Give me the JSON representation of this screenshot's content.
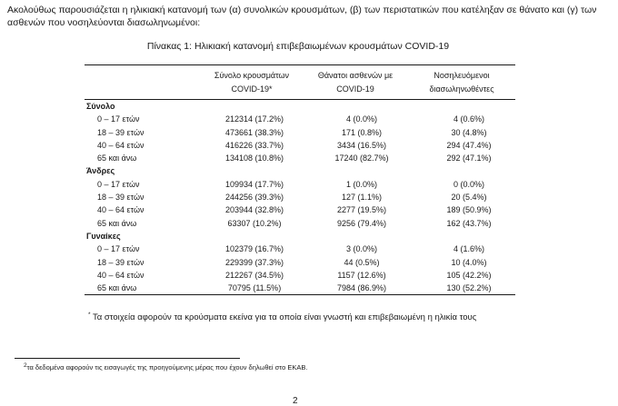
{
  "intro": "Ακολούθως παρουσιάζεται η ηλικιακή κατανομή των (α) συνολικών κρουσμάτων, (β) των περιστατικών που κατέληξαν σε θάνατο και (γ) των ασθενών που νοσηλεύονται διασωληνωμένοι:",
  "table": {
    "title": "Πίνακας 1: Ηλικιακή κατανομή επιβεβαιωμένων κρουσμάτων COVID-19",
    "headers": [
      "",
      "Σύνολο κρουσμάτων COVID-19*",
      "Θάνατοι ασθενών με COVID-19",
      "Νοσηλευόμενοι διασωληνωθέντες"
    ],
    "groups": [
      {
        "name": "Σύνολο",
        "rows": [
          {
            "age": "0 – 17 ετών",
            "cases": "212314 (17.2%)",
            "deaths": "4 (0.0%)",
            "icu": "4 (0.6%)"
          },
          {
            "age": "18 – 39 ετών",
            "cases": "473661 (38.3%)",
            "deaths": "171 (0.8%)",
            "icu": "30 (4.8%)"
          },
          {
            "age": "40 – 64 ετών",
            "cases": "416226 (33.7%)",
            "deaths": "3434 (16.5%)",
            "icu": "294 (47.4%)"
          },
          {
            "age": "65 και άνω",
            "cases": "134108 (10.8%)",
            "deaths": "17240 (82.7%)",
            "icu": "292 (47.1%)"
          }
        ]
      },
      {
        "name": "Άνδρες",
        "rows": [
          {
            "age": "0 – 17 ετών",
            "cases": "109934 (17.7%)",
            "deaths": "1 (0.0%)",
            "icu": "0 (0.0%)"
          },
          {
            "age": "18 – 39 ετών",
            "cases": "244256 (39.3%)",
            "deaths": "127 (1.1%)",
            "icu": "20 (5.4%)"
          },
          {
            "age": "40 – 64 ετών",
            "cases": "203944 (32.8%)",
            "deaths": "2277 (19.5%)",
            "icu": "189 (50.9%)"
          },
          {
            "age": "65 και άνω",
            "cases": "63307 (10.2%)",
            "deaths": "9256 (79.4%)",
            "icu": "162 (43.7%)"
          }
        ]
      },
      {
        "name": "Γυναίκες",
        "rows": [
          {
            "age": "0 – 17 ετών",
            "cases": "102379 (16.7%)",
            "deaths": "3 (0.0%)",
            "icu": "4 (1.6%)"
          },
          {
            "age": "18 – 39 ετών",
            "cases": "229399 (37.3%)",
            "deaths": "44 (0.5%)",
            "icu": "10 (4.0%)"
          },
          {
            "age": "40 – 64 ετών",
            "cases": "212267 (34.5%)",
            "deaths": "1157 (12.6%)",
            "icu": "105 (42.2%)"
          },
          {
            "age": "65 και άνω",
            "cases": "70795 (11.5%)",
            "deaths": "7984 (86.9%)",
            "icu": "130 (52.2%)"
          }
        ]
      }
    ],
    "note_marker": "*",
    "note": "Τα στοιχεία αφορούν τα κρούσματα εκείνα για τα οποία είναι γνωστή και επιβεβαιωμένη η ηλικία τους"
  },
  "footnote": {
    "marker": "2",
    "text": "τα δεδομένα αφορούν τις εισαγωγές της προηγούμενης μέρας που έχουν δηλωθεί στο ΕΚΑΒ."
  },
  "page_number": "2"
}
